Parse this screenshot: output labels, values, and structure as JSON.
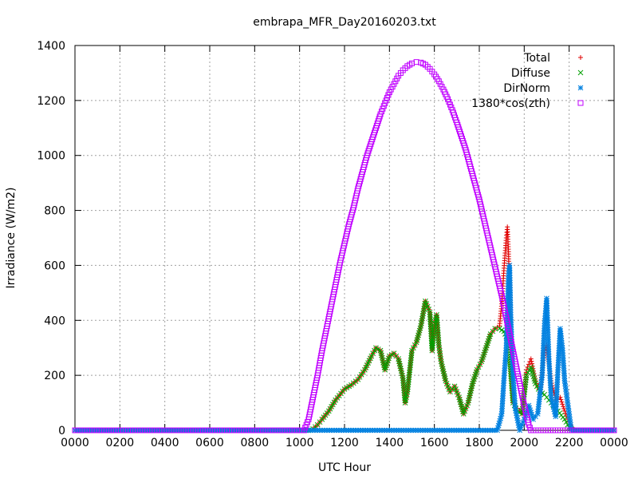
{
  "chart_data": {
    "type": "scatter",
    "title": "embrapa_MFR_Day20160203.txt",
    "xlabel": "UTC Hour",
    "ylabel": "Irradiance (W/m2)",
    "xlim": [
      0,
      24
    ],
    "ylim": [
      0,
      1400
    ],
    "x_tick_labels": [
      "0000",
      "0200",
      "0400",
      "0600",
      "0800",
      "1000",
      "1200",
      "1400",
      "1600",
      "1800",
      "2000",
      "2200",
      "0000"
    ],
    "y_tick_labels": [
      "0",
      "200",
      "400",
      "600",
      "800",
      "1000",
      "1200",
      "1400"
    ],
    "grid": true,
    "legend_position": "top-right",
    "series": [
      {
        "name": "Total",
        "marker": "plus",
        "color": "#e00000",
        "points": [
          [
            0,
            0
          ],
          [
            10.4,
            0
          ],
          [
            10.6,
            5
          ],
          [
            10.8,
            20
          ],
          [
            11.0,
            40
          ],
          [
            11.3,
            70
          ],
          [
            11.6,
            110
          ],
          [
            12.0,
            150
          ],
          [
            12.3,
            165
          ],
          [
            12.6,
            185
          ],
          [
            12.9,
            220
          ],
          [
            13.2,
            270
          ],
          [
            13.4,
            300
          ],
          [
            13.6,
            290
          ],
          [
            13.8,
            220
          ],
          [
            14.0,
            270
          ],
          [
            14.2,
            280
          ],
          [
            14.4,
            260
          ],
          [
            14.6,
            190
          ],
          [
            14.7,
            100
          ],
          [
            14.8,
            140
          ],
          [
            15.0,
            290
          ],
          [
            15.2,
            320
          ],
          [
            15.4,
            380
          ],
          [
            15.6,
            470
          ],
          [
            15.8,
            430
          ],
          [
            15.9,
            290
          ],
          [
            16.0,
            380
          ],
          [
            16.1,
            420
          ],
          [
            16.2,
            310
          ],
          [
            16.3,
            250
          ],
          [
            16.5,
            180
          ],
          [
            16.7,
            140
          ],
          [
            16.9,
            160
          ],
          [
            17.1,
            120
          ],
          [
            17.3,
            60
          ],
          [
            17.5,
            100
          ],
          [
            17.7,
            170
          ],
          [
            17.9,
            220
          ],
          [
            18.1,
            250
          ],
          [
            18.3,
            300
          ],
          [
            18.5,
            350
          ],
          [
            18.7,
            370
          ],
          [
            18.9,
            380
          ],
          [
            19.0,
            460
          ],
          [
            19.1,
            590
          ],
          [
            19.2,
            700
          ],
          [
            19.25,
            740
          ],
          [
            19.3,
            650
          ],
          [
            19.4,
            240
          ],
          [
            19.5,
            100
          ],
          [
            19.7,
            80
          ],
          [
            19.9,
            60
          ],
          [
            20.1,
            220
          ],
          [
            20.3,
            260
          ],
          [
            20.5,
            180
          ],
          [
            20.7,
            140
          ],
          [
            20.9,
            290
          ],
          [
            21.0,
            310
          ],
          [
            21.2,
            180
          ],
          [
            21.4,
            110
          ],
          [
            21.6,
            120
          ],
          [
            21.8,
            70
          ],
          [
            22.0,
            30
          ],
          [
            22.2,
            0
          ],
          [
            24,
            0
          ]
        ]
      },
      {
        "name": "Diffuse",
        "marker": "cross",
        "color": "#00a000",
        "points": [
          [
            0,
            0
          ],
          [
            10.4,
            0
          ],
          [
            10.6,
            5
          ],
          [
            10.8,
            20
          ],
          [
            11.0,
            40
          ],
          [
            11.3,
            70
          ],
          [
            11.6,
            110
          ],
          [
            12.0,
            150
          ],
          [
            12.3,
            165
          ],
          [
            12.6,
            185
          ],
          [
            12.9,
            220
          ],
          [
            13.2,
            270
          ],
          [
            13.4,
            300
          ],
          [
            13.6,
            290
          ],
          [
            13.8,
            220
          ],
          [
            14.0,
            270
          ],
          [
            14.2,
            280
          ],
          [
            14.4,
            260
          ],
          [
            14.6,
            190
          ],
          [
            14.7,
            100
          ],
          [
            14.8,
            140
          ],
          [
            15.0,
            290
          ],
          [
            15.2,
            320
          ],
          [
            15.4,
            380
          ],
          [
            15.6,
            470
          ],
          [
            15.8,
            430
          ],
          [
            15.9,
            290
          ],
          [
            16.0,
            380
          ],
          [
            16.1,
            420
          ],
          [
            16.2,
            310
          ],
          [
            16.3,
            250
          ],
          [
            16.5,
            180
          ],
          [
            16.7,
            140
          ],
          [
            16.9,
            160
          ],
          [
            17.1,
            120
          ],
          [
            17.3,
            60
          ],
          [
            17.5,
            100
          ],
          [
            17.7,
            170
          ],
          [
            17.9,
            220
          ],
          [
            18.1,
            250
          ],
          [
            18.3,
            300
          ],
          [
            18.5,
            350
          ],
          [
            18.7,
            370
          ],
          [
            18.9,
            370
          ],
          [
            19.1,
            360
          ],
          [
            19.3,
            320
          ],
          [
            19.5,
            100
          ],
          [
            19.7,
            70
          ],
          [
            19.9,
            60
          ],
          [
            20.1,
            200
          ],
          [
            20.3,
            230
          ],
          [
            20.5,
            170
          ],
          [
            20.7,
            140
          ],
          [
            20.9,
            130
          ],
          [
            21.1,
            110
          ],
          [
            21.3,
            90
          ],
          [
            21.5,
            70
          ],
          [
            21.8,
            40
          ],
          [
            22.0,
            10
          ],
          [
            22.2,
            0
          ],
          [
            24,
            0
          ]
        ]
      },
      {
        "name": "DirNorm",
        "marker": "star",
        "color": "#0080e0",
        "points": [
          [
            0,
            0
          ],
          [
            18.8,
            0
          ],
          [
            19.0,
            60
          ],
          [
            19.1,
            190
          ],
          [
            19.2,
            300
          ],
          [
            19.3,
            560
          ],
          [
            19.35,
            600
          ],
          [
            19.4,
            420
          ],
          [
            19.5,
            200
          ],
          [
            19.6,
            80
          ],
          [
            19.8,
            0
          ],
          [
            20.0,
            40
          ],
          [
            20.2,
            90
          ],
          [
            20.4,
            40
          ],
          [
            20.6,
            60
          ],
          [
            20.8,
            200
          ],
          [
            20.9,
            380
          ],
          [
            21.0,
            480
          ],
          [
            21.1,
            260
          ],
          [
            21.2,
            120
          ],
          [
            21.4,
            50
          ],
          [
            21.5,
            220
          ],
          [
            21.6,
            370
          ],
          [
            21.7,
            300
          ],
          [
            21.8,
            180
          ],
          [
            21.9,
            120
          ],
          [
            22.0,
            60
          ],
          [
            22.1,
            0
          ],
          [
            24,
            0
          ]
        ]
      },
      {
        "name": "1380*cos(zth)",
        "marker": "square",
        "color": "#c000ff",
        "points": [
          [
            0,
            0
          ],
          [
            10.2,
            0
          ],
          [
            10.4,
            40
          ],
          [
            10.6,
            120
          ],
          [
            10.8,
            200
          ],
          [
            11.0,
            290
          ],
          [
            11.2,
            370
          ],
          [
            11.4,
            450
          ],
          [
            11.6,
            530
          ],
          [
            11.8,
            610
          ],
          [
            12.0,
            680
          ],
          [
            12.2,
            750
          ],
          [
            12.4,
            810
          ],
          [
            12.6,
            880
          ],
          [
            12.8,
            940
          ],
          [
            13.0,
            1000
          ],
          [
            13.2,
            1050
          ],
          [
            13.4,
            1100
          ],
          [
            13.6,
            1150
          ],
          [
            13.8,
            1190
          ],
          [
            14.0,
            1230
          ],
          [
            14.2,
            1260
          ],
          [
            14.4,
            1290
          ],
          [
            14.6,
            1310
          ],
          [
            14.8,
            1325
          ],
          [
            15.0,
            1335
          ],
          [
            15.2,
            1340
          ],
          [
            15.4,
            1338
          ],
          [
            15.6,
            1330
          ],
          [
            15.8,
            1315
          ],
          [
            16.0,
            1295
          ],
          [
            16.2,
            1270
          ],
          [
            16.4,
            1240
          ],
          [
            16.6,
            1205
          ],
          [
            16.8,
            1165
          ],
          [
            17.0,
            1120
          ],
          [
            17.2,
            1070
          ],
          [
            17.4,
            1020
          ],
          [
            17.6,
            960
          ],
          [
            17.8,
            900
          ],
          [
            18.0,
            840
          ],
          [
            18.2,
            770
          ],
          [
            18.4,
            700
          ],
          [
            18.6,
            630
          ],
          [
            18.8,
            560
          ],
          [
            19.0,
            490
          ],
          [
            19.2,
            410
          ],
          [
            19.4,
            330
          ],
          [
            19.6,
            250
          ],
          [
            19.8,
            170
          ],
          [
            20.0,
            90
          ],
          [
            20.2,
            20
          ],
          [
            20.3,
            0
          ],
          [
            24,
            0
          ]
        ]
      }
    ]
  }
}
